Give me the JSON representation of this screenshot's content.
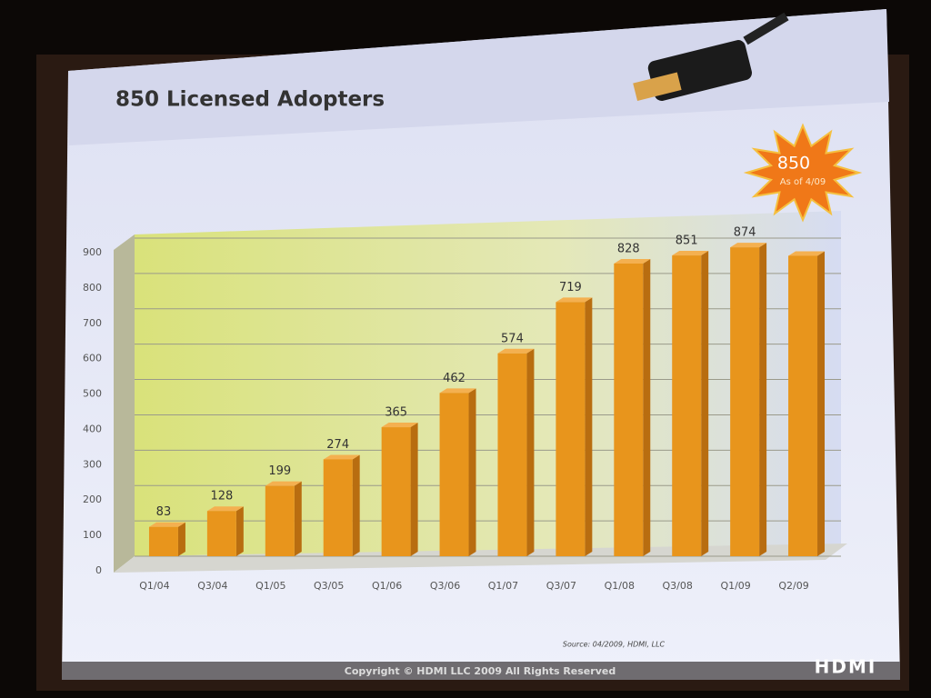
{
  "chart_data": {
    "type": "bar",
    "title": "850 Licensed Adopters",
    "categories": [
      "Q1/04",
      "Q3/04",
      "Q1/05",
      "Q3/05",
      "Q1/06",
      "Q3/06",
      "Q1/07",
      "Q3/07",
      "Q1/08",
      "Q3/08",
      "Q1/09",
      "Q2/09"
    ],
    "values": [
      83,
      128,
      199,
      274,
      365,
      462,
      574,
      719,
      828,
      851,
      874,
      850
    ],
    "value_labels": [
      "83",
      "128",
      "199",
      "274",
      "365",
      "462",
      "574",
      "719",
      "828",
      "851",
      "874",
      null
    ],
    "color": "#e8951c",
    "ylim": [
      0,
      900
    ],
    "yticks": [
      0,
      100,
      200,
      300,
      400,
      500,
      600,
      700,
      800,
      900
    ],
    "grid": true,
    "badge": {
      "value": "850",
      "note": "As of 4/09"
    },
    "source": "Source: 04/2009, HDMI, LLC",
    "footer": "Copyright © HDMI LLC 2009  All Rights Reserved",
    "logo": "HDMI"
  }
}
